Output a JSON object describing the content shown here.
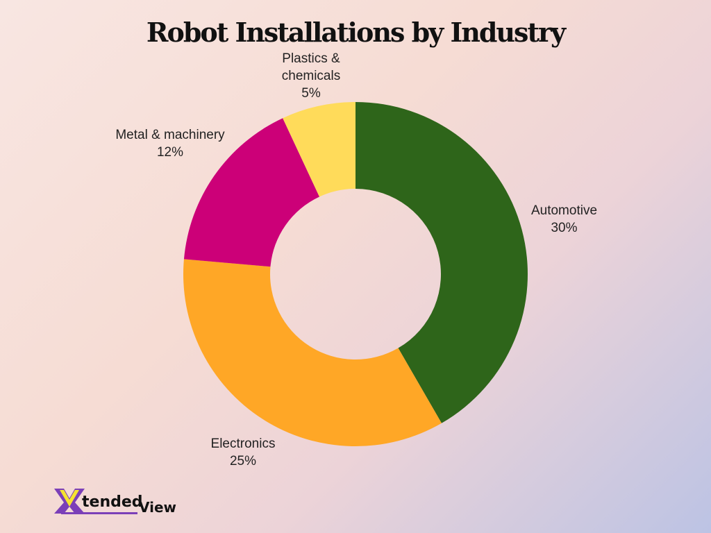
{
  "chart_data": {
    "type": "pie",
    "donut": true,
    "title": "Robot Installations by Industry",
    "categories": [
      "Automotive",
      "Electronics",
      "Metal & machinery",
      "Plastics & chemicals"
    ],
    "values": [
      30,
      25,
      12,
      5
    ],
    "value_labels": [
      "30%",
      "25%",
      "12%",
      "5%"
    ],
    "colors": [
      "#2e651a",
      "#ffa726",
      "#cc0078",
      "#ffdb5a"
    ],
    "legend": "none"
  },
  "logo": {
    "text": "XtendedView"
  }
}
